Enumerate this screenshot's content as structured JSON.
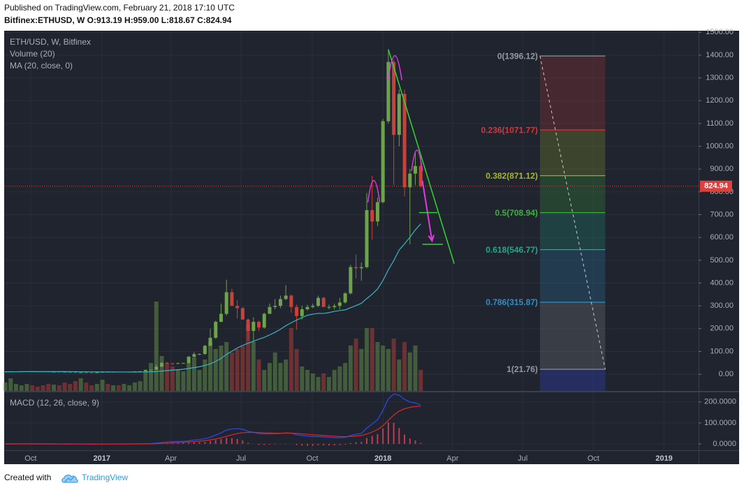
{
  "header": {
    "published": "Published on TradingView.com, February 21, 2018 17:10 UTC",
    "symbol_line": "Bitfinex:ETHUSD, W  O:913.19 H:959.00 L:818.67 C:824.94"
  },
  "footer": {
    "created": "Created with",
    "brand": "TradingView"
  },
  "chart_data": {
    "type": "candlestick",
    "legend": [
      "ETH/USD, W, Bitfinex",
      "Volume (20)",
      "MA (20, close, 0)"
    ],
    "up_color": "#6fa24c",
    "down_color": "#c8423a",
    "x": [
      0,
      1,
      2,
      3,
      4,
      5,
      6,
      7,
      8,
      9,
      10,
      11,
      12,
      13,
      14,
      15,
      16,
      17,
      18,
      19,
      20,
      21,
      22,
      23,
      24,
      25,
      26,
      27,
      28,
      29,
      30,
      31,
      32,
      33,
      34,
      35,
      36,
      37,
      38,
      39,
      40,
      41,
      42,
      43,
      44,
      45,
      46,
      47,
      48,
      49,
      50,
      51,
      52,
      53,
      54,
      55,
      56,
      57,
      58,
      59,
      60,
      61,
      62,
      63,
      64,
      65,
      66,
      67,
      68,
      69,
      70,
      71,
      72,
      73,
      74,
      75,
      76,
      77
    ],
    "open": [
      11.5,
      11.8,
      12.0,
      12.5,
      13.0,
      13.2,
      12.0,
      11.9,
      11.8,
      10.9,
      10.9,
      10.0,
      9.6,
      9.3,
      7.8,
      8.2,
      7.7,
      7.2,
      8.0,
      10.1,
      9.8,
      10.8,
      10.6,
      11.3,
      11.4,
      12.8,
      13.2,
      19.2,
      19.8,
      33.0,
      50.0,
      48.0,
      47.5,
      48.5,
      49.0,
      77.0,
      88.0,
      89.0,
      125.0,
      160.0,
      230.0,
      265.0,
      360.0,
      300.0,
      290.0,
      240.0,
      190.0,
      230.0,
      205.0,
      265.0,
      295.0,
      300.0,
      330.0,
      345.0,
      295.0,
      255.0,
      285.0,
      295.0,
      300.0,
      335.0,
      295.0,
      295.0,
      300.0,
      315.0,
      355.0,
      470.0,
      465.0,
      470.0,
      720.0,
      670.0,
      755.0,
      1110.0,
      1370.0,
      1050.0,
      1230.0,
      820.0,
      880.0,
      913.19
    ],
    "high": [
      12.1,
      12.3,
      12.6,
      13.5,
      13.4,
      13.2,
      12.3,
      12.1,
      11.9,
      11.2,
      11.0,
      10.3,
      9.8,
      9.4,
      8.5,
      8.4,
      7.9,
      8.3,
      11.2,
      10.5,
      11.0,
      10.9,
      11.5,
      11.5,
      13.0,
      13.3,
      19.5,
      20.5,
      44.0,
      53.0,
      53.5,
      50.0,
      51.0,
      50.5,
      80.0,
      97.0,
      91.0,
      128.0,
      200.0,
      235.0,
      310.0,
      415.0,
      375.0,
      325.0,
      295.0,
      245.0,
      250.0,
      235.0,
      270.0,
      310.0,
      330.0,
      345.0,
      390.0,
      350.0,
      305.0,
      300.0,
      305.0,
      310.0,
      345.0,
      340.0,
      305.0,
      310.0,
      335.0,
      360.0,
      480.0,
      525.0,
      490.0,
      795.0,
      870.0,
      775.0,
      1120.0,
      1425.0,
      1380.0,
      1250.0,
      1250.0,
      900.0,
      975.0,
      959.0
    ],
    "low": [
      11.0,
      11.3,
      11.8,
      12.3,
      12.8,
      11.9,
      11.7,
      11.6,
      10.6,
      10.3,
      9.8,
      9.4,
      9.0,
      7.5,
      6.3,
      7.6,
      7.1,
      7.1,
      8.0,
      9.6,
      9.6,
      10.3,
      10.5,
      10.9,
      11.3,
      12.5,
      13.1,
      16.8,
      19.5,
      32.0,
      44.5,
      40.0,
      45.0,
      47.5,
      48.5,
      74.0,
      84.0,
      85.0,
      122.0,
      155.0,
      228.0,
      257.0,
      300.0,
      245.0,
      240.0,
      150.0,
      140.0,
      190.0,
      200.0,
      265.0,
      285.0,
      290.0,
      325.0,
      270.0,
      195.0,
      240.0,
      280.0,
      290.0,
      295.0,
      295.0,
      285.0,
      285.0,
      285.0,
      310.0,
      350.0,
      420.0,
      410.0,
      465.0,
      590.0,
      650.0,
      750.0,
      1100.0,
      830.0,
      1000.0,
      780.0,
      570.0,
      830.0,
      818.67
    ],
    "close": [
      11.8,
      12.0,
      12.5,
      13.0,
      13.2,
      12.0,
      11.9,
      11.8,
      10.9,
      10.9,
      10.0,
      9.6,
      9.3,
      7.8,
      8.2,
      7.7,
      7.2,
      8.0,
      10.1,
      9.8,
      10.8,
      10.6,
      11.3,
      11.4,
      12.8,
      13.2,
      19.2,
      19.8,
      33.0,
      50.0,
      48.0,
      47.5,
      48.5,
      49.0,
      77.0,
      88.0,
      89.0,
      125.0,
      160.0,
      230.0,
      265.0,
      360.0,
      300.0,
      290.0,
      240.0,
      190.0,
      230.0,
      205.0,
      265.0,
      295.0,
      300.0,
      330.0,
      345.0,
      295.0,
      255.0,
      285.0,
      295.0,
      300.0,
      335.0,
      295.0,
      295.0,
      300.0,
      315.0,
      355.0,
      470.0,
      465.0,
      470.0,
      720.0,
      670.0,
      755.0,
      1110.0,
      1370.0,
      1050.0,
      1230.0,
      820.0,
      880.0,
      913.19,
      824.94
    ],
    "volume": {
      "ylim": [
        0,
        516
      ],
      "values": [
        12,
        18,
        10,
        8,
        10,
        8,
        6,
        8,
        10,
        9,
        8,
        12,
        10,
        14,
        18,
        12,
        8,
        10,
        16,
        10,
        8,
        8,
        10,
        8,
        12,
        14,
        28,
        40,
        128,
        50,
        40,
        35,
        30,
        28,
        40,
        48,
        30,
        45,
        70,
        60,
        65,
        70,
        55,
        60,
        65,
        95,
        70,
        45,
        30,
        40,
        55,
        40,
        45,
        90,
        60,
        35,
        30,
        25,
        20,
        25,
        20,
        30,
        35,
        40,
        65,
        75,
        60,
        90,
        90,
        70,
        65,
        60,
        75,
        45,
        70,
        55,
        65,
        30
      ]
    },
    "ma": {
      "color": "#3bb4c4",
      "values": [
        10.8,
        10.9,
        11.0,
        11.2,
        11.4,
        11.5,
        11.6,
        11.7,
        11.7,
        11.7,
        11.6,
        11.5,
        11.4,
        11.2,
        11.0,
        10.8,
        10.6,
        10.4,
        10.3,
        10.1,
        10.0,
        9.9,
        9.8,
        9.7,
        9.7,
        9.8,
        10.3,
        10.8,
        12.0,
        13.8,
        15.9,
        18.0,
        20.0,
        22.0,
        25.3,
        29.2,
        33.1,
        38.5,
        45.6,
        56.3,
        69.4,
        86.8,
        101.2,
        115.2,
        126.8,
        135.7,
        145.1,
        153.9,
        161.7,
        172.7,
        184.0,
        197.2,
        213.0,
        226.0,
        237.6,
        248.4,
        258.9,
        263.6,
        267.1,
        266.7,
        270.3,
        275.8,
        279.3,
        282.6,
        291.8,
        301.3,
        311.3,
        332.0,
        350.8,
        374.1,
        411.4,
        458.4,
        498.3,
        545.0,
        572.0,
        601.0,
        633.0,
        660.0
      ]
    },
    "last_price": {
      "value": 824.94,
      "label": "824.94",
      "color": "#e0403c"
    },
    "xlim": [
      -0.2,
      128.5
    ],
    "xticks": [
      {
        "value": 4.7,
        "label": "Oct"
      },
      {
        "value": 17.9,
        "label": "2017"
      },
      {
        "value": 30.7,
        "label": "Apr"
      },
      {
        "value": 43.7,
        "label": "Jul"
      },
      {
        "value": 56.9,
        "label": "Oct"
      },
      {
        "value": 70,
        "label": "2018"
      },
      {
        "value": 82.9,
        "label": "Apr"
      },
      {
        "value": 95.9,
        "label": "Jul"
      },
      {
        "value": 109,
        "label": "Oct"
      },
      {
        "value": 122.1,
        "label": "2019"
      }
    ],
    "ylim": [
      -73,
      1507
    ],
    "yticks": [
      {
        "value": 0,
        "label": "0.00"
      },
      {
        "value": 100,
        "label": "100.00"
      },
      {
        "value": 200,
        "label": "200.00"
      },
      {
        "value": 300,
        "label": "300.00"
      },
      {
        "value": 400,
        "label": "400.00"
      },
      {
        "value": 500,
        "label": "500.00"
      },
      {
        "value": 600,
        "label": "600.00"
      },
      {
        "value": 700,
        "label": "700.00"
      },
      {
        "value": 800,
        "label": "800.00"
      },
      {
        "value": 900,
        "label": "900.00"
      },
      {
        "value": 1000,
        "label": "1000.00"
      },
      {
        "value": 1100,
        "label": "1100.00"
      },
      {
        "value": 1200,
        "label": "1200.00"
      },
      {
        "value": 1300,
        "label": "1300.00"
      },
      {
        "value": 1400,
        "label": "1400.00"
      },
      {
        "value": 1500,
        "label": "1500.00"
      }
    ],
    "fib": {
      "x": [
        99.1,
        111.2
      ],
      "levels": [
        {
          "value": 1396.12,
          "label": "0(1396.12)",
          "color": "#9598a1"
        },
        {
          "value": 1071.77,
          "label": "0.236(1071.77)",
          "color": "#d2383c"
        },
        {
          "value": 871.12,
          "label": "0.382(871.12)",
          "color": "#a5b62e"
        },
        {
          "value": 708.94,
          "label": "0.5(708.94)",
          "color": "#3bb33b"
        },
        {
          "value": 546.77,
          "label": "0.618(546.77)",
          "color": "#22a88c"
        },
        {
          "value": 315.87,
          "label": "0.786(315.87)",
          "color": "#2e8fc7"
        },
        {
          "value": 21.76,
          "label": "1(21.76)",
          "color": "#9598a1"
        }
      ]
    },
    "drawings": [
      {
        "type": "line",
        "color": "#35d435",
        "points": [
          [
            71,
            1425
          ],
          [
            83.2,
            485
          ]
        ]
      },
      {
        "type": "arc",
        "color": "#e13be1",
        "points": [
          [
            67.2,
            754
          ],
          [
            68.3,
            850
          ],
          [
            69.4,
            754
          ]
        ]
      },
      {
        "type": "arc",
        "color": "#e13be1",
        "points": [
          [
            71.0,
            1290
          ],
          [
            72.2,
            1397
          ],
          [
            73.5,
            1290
          ]
        ]
      },
      {
        "type": "arc",
        "color": "#e13be1",
        "points": [
          [
            75.3,
            892
          ],
          [
            76.3,
            983
          ],
          [
            77.3,
            892
          ]
        ]
      },
      {
        "type": "arrow",
        "color": "#e13be1",
        "points": [
          [
            77.3,
            850
          ],
          [
            79.1,
            585
          ]
        ]
      },
      {
        "type": "line",
        "color": "#35d435",
        "points": [
          [
            76.7,
            708.94
          ],
          [
            80.1,
            708.94
          ]
        ]
      },
      {
        "type": "line",
        "color": "#35d435",
        "points": [
          [
            77.3,
            570
          ],
          [
            81.1,
            570
          ]
        ]
      }
    ],
    "macd": {
      "title": "MACD (12, 26, close, 9)",
      "ylim": [
        -30,
        246
      ],
      "yticks": [
        {
          "value": 0,
          "label": "0.0000"
        },
        {
          "value": 100,
          "label": "100.0000"
        },
        {
          "value": 200,
          "label": "200.0000"
        }
      ],
      "macd": {
        "color": "#2b47e0",
        "values": [
          0.1,
          0.1,
          0.2,
          0.3,
          0.3,
          0.2,
          0.1,
          0.0,
          -0.2,
          -0.3,
          -0.5,
          -0.6,
          -0.7,
          -0.9,
          -1.0,
          -1.1,
          -1.2,
          -1.1,
          -0.8,
          -0.7,
          -0.5,
          -0.4,
          -0.2,
          0.0,
          0.3,
          0.6,
          1.4,
          2.0,
          4.0,
          7.0,
          9.5,
          11.0,
          12.0,
          12.5,
          15.0,
          18.5,
          21.0,
          25.0,
          32.0,
          42.0,
          53.0,
          66.0,
          71.0,
          73.0,
          70.0,
          60.0,
          55.0,
          49.0,
          48.0,
          48.0,
          48.5,
          50.0,
          53.0,
          51.0,
          44.0,
          40.0,
          37.0,
          35.0,
          35.5,
          33.0,
          31.0,
          29.5,
          29.5,
          31.0,
          40.0,
          46.0,
          50.0,
          75.0,
          95.0,
          115.0,
          160.0,
          215.0,
          238.0,
          232.0,
          212.0,
          200.0,
          195.0,
          185.0
        ]
      },
      "signal": {
        "color": "#d0262c",
        "values": [
          0.1,
          0.1,
          0.1,
          0.2,
          0.2,
          0.2,
          0.2,
          0.1,
          0.1,
          0.0,
          -0.1,
          -0.2,
          -0.3,
          -0.4,
          -0.5,
          -0.6,
          -0.7,
          -0.8,
          -0.8,
          -0.8,
          -0.7,
          -0.6,
          -0.5,
          -0.4,
          -0.3,
          -0.1,
          0.2,
          0.6,
          1.3,
          2.4,
          3.8,
          5.3,
          6.6,
          7.8,
          9.2,
          11.1,
          13.1,
          15.5,
          18.8,
          23.4,
          29.3,
          36.6,
          43.5,
          49.4,
          53.5,
          54.8,
          54.9,
          53.7,
          52.6,
          51.7,
          51.1,
          50.9,
          51.3,
          51.2,
          49.7,
          47.8,
          45.6,
          43.5,
          41.9,
          40.1,
          38.3,
          36.5,
          35.1,
          34.3,
          35.4,
          37.5,
          40.0,
          47.0,
          56.6,
          68.3,
          86.6,
          112.3,
          137.4,
          156.3,
          167.4,
          173.9,
          178.1,
          179.5
        ]
      },
      "histogram": {
        "color": "#c23b4e",
        "values": [
          0,
          0,
          0.1,
          0.1,
          0.1,
          0,
          -0.1,
          -0.1,
          -0.3,
          -0.3,
          -0.4,
          -0.4,
          -0.4,
          -0.5,
          -0.5,
          -0.5,
          -0.5,
          -0.3,
          0,
          0.1,
          0.2,
          0.2,
          0.3,
          0.4,
          0.6,
          0.7,
          1.2,
          1.4,
          2.7,
          4.6,
          5.7,
          5.7,
          5.4,
          4.7,
          5.8,
          7.4,
          7.9,
          9.5,
          13.2,
          18.6,
          23.7,
          29.4,
          27.5,
          23.6,
          16.5,
          5.2,
          0.1,
          -4.7,
          -4.6,
          -3.7,
          -2.6,
          -0.9,
          1.7,
          -0.2,
          -5.7,
          -7.8,
          -8.6,
          -8.5,
          -6.4,
          -7.1,
          -7.3,
          -7.0,
          -5.6,
          -3.3,
          4.6,
          8.5,
          10.0,
          28.0,
          38.4,
          46.7,
          73.4,
          102.7,
          100.6,
          75.7,
          44.6,
          26.1,
          16.9,
          5.5
        ]
      }
    }
  }
}
